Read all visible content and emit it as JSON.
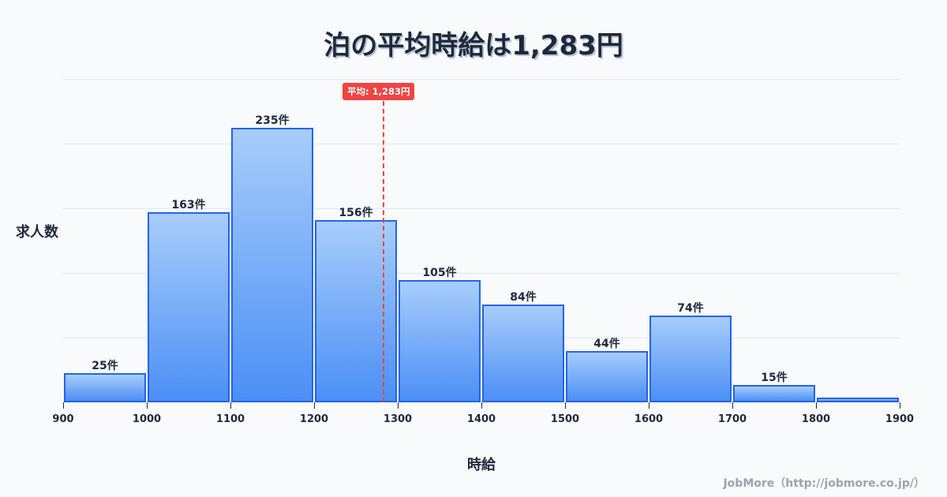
{
  "title": "泊の平均時給は1,283円",
  "axis": {
    "ylabel": "求人数",
    "xlabel": "時給"
  },
  "average": {
    "label": "平均: 1,283円",
    "value": 1283,
    "color": "#ef4444"
  },
  "credit": "JobMore（http://jobmore.co.jp/）",
  "chart_data": {
    "type": "bar",
    "title": "泊の平均時給は1,283円",
    "xlabel": "時給",
    "ylabel": "求人数",
    "bin_edges": [
      900,
      1000,
      1100,
      1200,
      1300,
      1400,
      1500,
      1600,
      1700,
      1800,
      1900
    ],
    "categories": [
      "900-1000",
      "1000-1100",
      "1100-1200",
      "1200-1300",
      "1300-1400",
      "1400-1500",
      "1500-1600",
      "1600-1700",
      "1700-1800",
      "1800-1900"
    ],
    "values": [
      25,
      163,
      235,
      156,
      105,
      84,
      44,
      74,
      15,
      4
    ],
    "labels": [
      "25件",
      "163件",
      "235件",
      "156件",
      "105件",
      "84件",
      "44件",
      "74件",
      "15件",
      ""
    ],
    "x_ticks": [
      "900",
      "1000",
      "1100",
      "1200",
      "1300",
      "1400",
      "1500",
      "1600",
      "1700",
      "1800",
      "1900"
    ],
    "annotations": [
      {
        "type": "vline",
        "x": 1283,
        "label": "平均: 1,283円"
      }
    ],
    "grid": true,
    "bar_color": "#2563eb",
    "ylim": [
      0,
      280
    ]
  }
}
